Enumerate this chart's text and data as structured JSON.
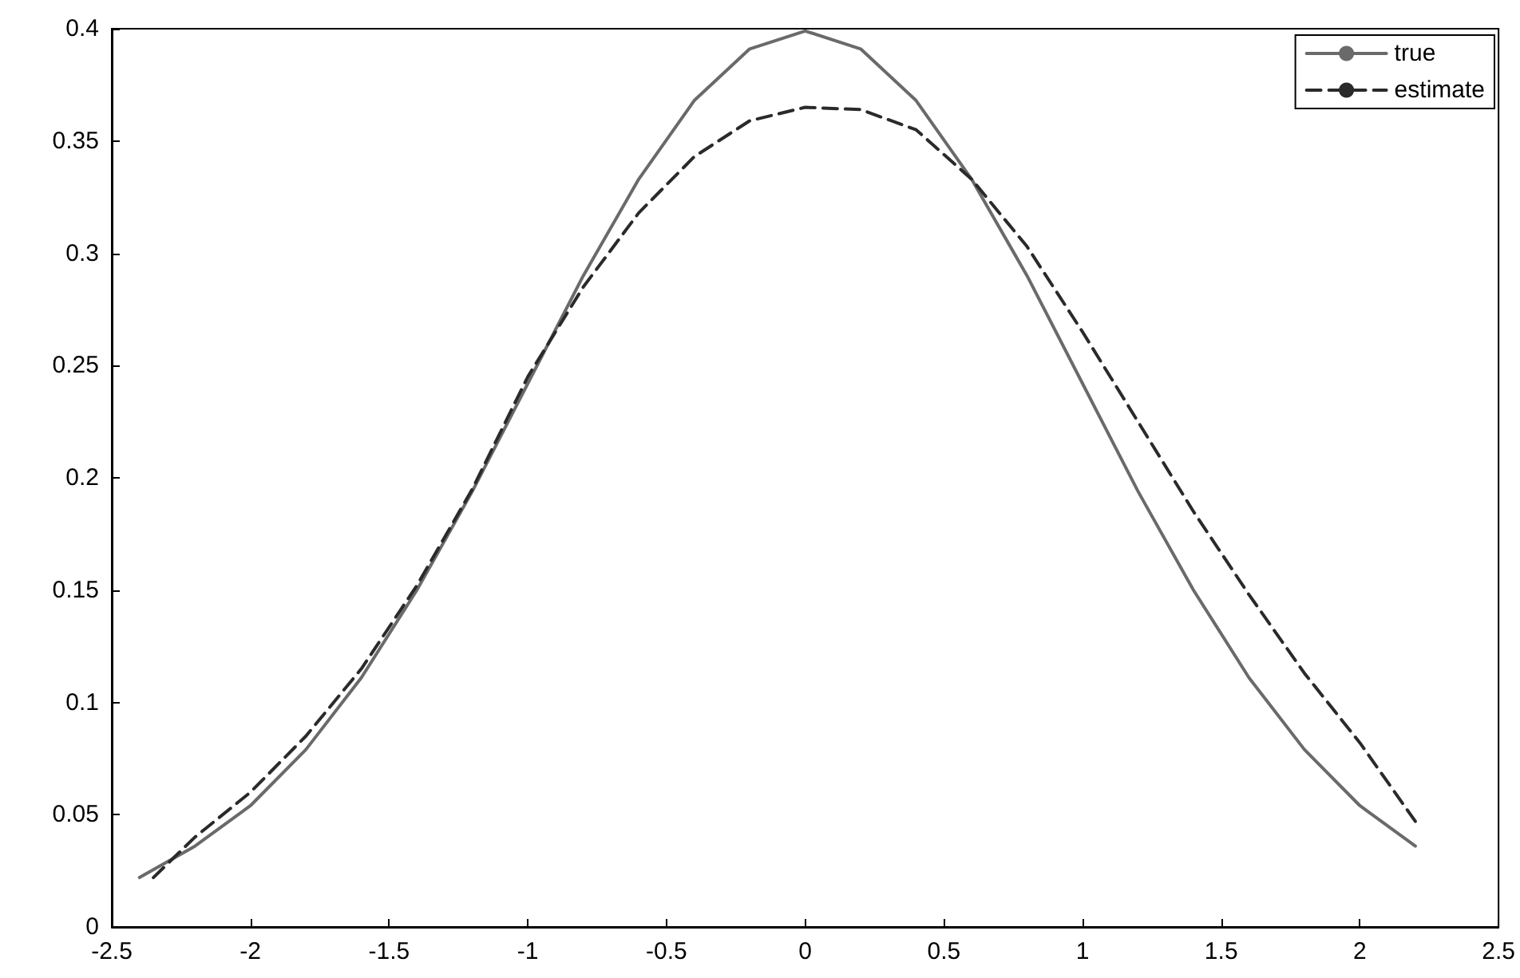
{
  "chart_data": {
    "type": "line",
    "legend": "top right",
    "grid": false,
    "marker": "none",
    "xlim": [
      -2.5,
      2.5
    ],
    "xticks": [
      -2.5,
      -2,
      -1.5,
      -1,
      -0.5,
      0,
      0.5,
      1,
      1.5,
      2,
      2.5
    ],
    "ylim": [
      0,
      0.4
    ],
    "yticks": [
      0,
      0.05,
      0.1,
      0.15,
      0.2,
      0.25,
      0.3,
      0.35,
      0.4
    ],
    "series": [
      {
        "name": "true",
        "color": "#6a6a6a",
        "line_style": "solid",
        "x": [
          -2.4,
          -2.2,
          -2.0,
          -1.8,
          -1.6,
          -1.4,
          -1.2,
          -1.0,
          -0.8,
          -0.6,
          -0.4,
          -0.2,
          0,
          0.2,
          0.4,
          0.6,
          0.8,
          1.0,
          1.2,
          1.4,
          1.6,
          1.8,
          2.0,
          2.2
        ],
        "values": [
          0.022,
          0.036,
          0.054,
          0.079,
          0.111,
          0.15,
          0.194,
          0.242,
          0.29,
          0.333,
          0.368,
          0.391,
          0.399,
          0.391,
          0.368,
          0.333,
          0.29,
          0.242,
          0.194,
          0.15,
          0.111,
          0.079,
          0.054,
          0.036
        ]
      },
      {
        "name": "estimate",
        "color": "#2a2a2a",
        "line_style": "dashed",
        "x": [
          -2.35,
          -2.2,
          -2.0,
          -1.8,
          -1.6,
          -1.4,
          -1.2,
          -1.0,
          -0.8,
          -0.6,
          -0.4,
          -0.2,
          0,
          0.2,
          0.4,
          0.6,
          0.8,
          1.0,
          1.2,
          1.4,
          1.6,
          1.8,
          2.0,
          2.2
        ],
        "values": [
          0.022,
          0.04,
          0.06,
          0.085,
          0.115,
          0.152,
          0.195,
          0.245,
          0.285,
          0.318,
          0.343,
          0.359,
          0.365,
          0.364,
          0.355,
          0.333,
          0.303,
          0.265,
          0.225,
          0.185,
          0.148,
          0.113,
          0.082,
          0.047
        ]
      }
    ]
  }
}
